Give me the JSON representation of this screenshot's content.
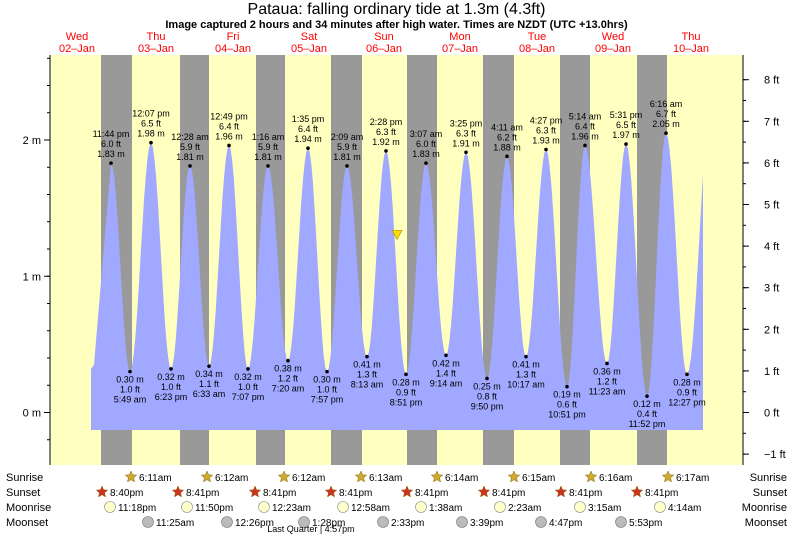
{
  "title": "Pataua: falling  ordinary tide at 1.3m (4.3ft)",
  "subtitle": "Image captured 2 hours and 34 minutes after high water. Times are NZDT (UTC +13.0hrs)",
  "colors": {
    "day": "#ffffc0",
    "night": "#999999",
    "tide": "#a0a8ff",
    "day_label": "#ff0000",
    "sun": "#ccaa33",
    "sunset": "#cc3322",
    "moonrise": "#ffffcc",
    "moonset": "#bbbbbb"
  },
  "chart_data": {
    "type": "area",
    "day_headers": [
      {
        "dow": "Wed",
        "date": "02–Jan"
      },
      {
        "dow": "Thu",
        "date": "03–Jan"
      },
      {
        "dow": "Fri",
        "date": "04–Jan"
      },
      {
        "dow": "Sat",
        "date": "05–Jan"
      },
      {
        "dow": "Sun",
        "date": "06–Jan"
      },
      {
        "dow": "Mon",
        "date": "07–Jan"
      },
      {
        "dow": "Tue",
        "date": "08–Jan"
      },
      {
        "dow": "Wed",
        "date": "09–Jan"
      },
      {
        "dow": "Thu",
        "date": "10–Jan"
      }
    ],
    "y_left_ticks": [
      "0 m",
      "1 m",
      "2 m"
    ],
    "y_right_ticks": [
      "−1 ft",
      "0 ft",
      "1 ft",
      "2 ft",
      "3 ft",
      "4 ft",
      "5 ft",
      "6 ft",
      "7 ft",
      "8 ft"
    ],
    "ylim_m": [
      -0.3,
      2.65
    ],
    "highs": [
      {
        "time": "11:44 pm",
        "ft": "6.0 ft",
        "m": "1.83 m",
        "h": 1.83
      },
      {
        "time": "12:07 pm",
        "ft": "6.5 ft",
        "m": "1.98 m",
        "h": 1.98
      },
      {
        "time": "12:28 am",
        "ft": "5.9 ft",
        "m": "1.81 m",
        "h": 1.81
      },
      {
        "time": "12:49 pm",
        "ft": "6.4 ft",
        "m": "1.96 m",
        "h": 1.96
      },
      {
        "time": "1:16 am",
        "ft": "5.9 ft",
        "m": "1.81 m",
        "h": 1.81
      },
      {
        "time": "1:35 pm",
        "ft": "6.4 ft",
        "m": "1.94 m",
        "h": 1.94
      },
      {
        "time": "2:09 am",
        "ft": "5.9 ft",
        "m": "1.81 m",
        "h": 1.81
      },
      {
        "time": "2:28 pm",
        "ft": "6.3 ft",
        "m": "1.92 m",
        "h": 1.92
      },
      {
        "time": "3:07 am",
        "ft": "6.0 ft",
        "m": "1.83 m",
        "h": 1.83
      },
      {
        "time": "3:25 pm",
        "ft": "6.3 ft",
        "m": "1.91 m",
        "h": 1.91
      },
      {
        "time": "4:11 am",
        "ft": "6.2 ft",
        "m": "1.88 m",
        "h": 1.88
      },
      {
        "time": "4:27 pm",
        "ft": "6.3 ft",
        "m": "1.93 m",
        "h": 1.93
      },
      {
        "time": "5:14 am",
        "ft": "6.4 ft",
        "m": "1.96 m",
        "h": 1.96
      },
      {
        "time": "5:31 pm",
        "ft": "6.5 ft",
        "m": "1.97 m",
        "h": 1.97
      },
      {
        "time": "6:16 am",
        "ft": "6.7 ft",
        "m": "2.05 m",
        "h": 2.05
      }
    ],
    "lows": [
      {
        "time": "5:49 am",
        "ft": "1.0 ft",
        "m": "0.30 m",
        "h": 0.3
      },
      {
        "time": "6:23 pm",
        "ft": "1.0 ft",
        "m": "0.32 m",
        "h": 0.32
      },
      {
        "time": "6:33 am",
        "ft": "1.1 ft",
        "m": "0.34 m",
        "h": 0.34
      },
      {
        "time": "7:07 pm",
        "ft": "1.0 ft",
        "m": "0.32 m",
        "h": 0.32
      },
      {
        "time": "7:20 am",
        "ft": "1.2 ft",
        "m": "0.38 m",
        "h": 0.38
      },
      {
        "time": "7:57 pm",
        "ft": "1.0 ft",
        "m": "0.30 m",
        "h": 0.3
      },
      {
        "time": "8:13 am",
        "ft": "1.3 ft",
        "m": "0.41 m",
        "h": 0.41
      },
      {
        "time": "8:51 pm",
        "ft": "0.9 ft",
        "m": "0.28 m",
        "h": 0.28
      },
      {
        "time": "9:14 am",
        "ft": "1.4 ft",
        "m": "0.42 m",
        "h": 0.42
      },
      {
        "time": "9:50 pm",
        "ft": "0.8 ft",
        "m": "0.25 m",
        "h": 0.25
      },
      {
        "time": "10:17 am",
        "ft": "1.3 ft",
        "m": "0.41 m",
        "h": 0.41
      },
      {
        "time": "10:51 pm",
        "ft": "0.6 ft",
        "m": "0.19 m",
        "h": 0.19
      },
      {
        "time": "11:23 am",
        "ft": "1.2 ft",
        "m": "0.36 m",
        "h": 0.36
      },
      {
        "time": "11:52 pm",
        "ft": "0.4 ft",
        "m": "0.12 m",
        "h": 0.12
      },
      {
        "time": "12:27 pm",
        "ft": "0.9 ft",
        "m": "0.28 m",
        "h": 0.28
      }
    ],
    "current_tide_m": 1.3
  },
  "rows": {
    "labels": [
      "Sunrise",
      "Sunset",
      "Moonrise",
      "Moonset"
    ],
    "sunrise": [
      "6:11am",
      "6:12am",
      "6:12am",
      "6:13am",
      "6:14am",
      "6:15am",
      "6:16am",
      "6:17am"
    ],
    "sunset": [
      "8:40pm",
      "8:41pm",
      "8:41pm",
      "8:41pm",
      "8:41pm",
      "8:41pm",
      "8:41pm",
      "8:41pm"
    ],
    "moonrise": [
      "11:18pm",
      "11:50pm",
      "12:23am",
      "12:58am",
      "1:38am",
      "2:23am",
      "3:15am",
      "4:14am"
    ],
    "moonset": [
      "11:25am",
      "12:26pm",
      "1:28pm",
      "2:33pm",
      "3:39pm",
      "4:47pm",
      "5:53pm"
    ],
    "moon_phase": "Last Quarter | 4:57pm"
  }
}
